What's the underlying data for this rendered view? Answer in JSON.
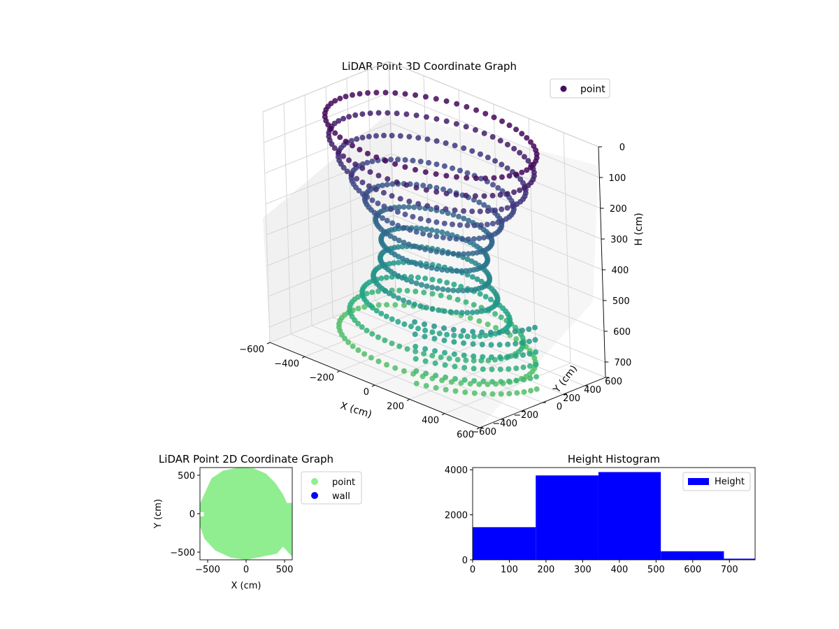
{
  "chart_data": [
    {
      "type": "scatter",
      "projection": "3d",
      "title": "LiDAR Point 3D Coordinate Graph",
      "xlabel": "X (cm)",
      "ylabel": "Y (cm)",
      "zlabel": "H (cm)",
      "xlim": [
        -600,
        600
      ],
      "ylim": [
        -600,
        600
      ],
      "zlim": [
        0,
        750
      ],
      "z_inverted": true,
      "xticks": [
        "−600",
        "−400",
        "−200",
        "0",
        "200",
        "400",
        "600"
      ],
      "yticks": [
        "−600",
        "−400",
        "−200",
        "0",
        "200",
        "400",
        "600"
      ],
      "zticks": [
        "0",
        "100",
        "200",
        "300",
        "400",
        "500",
        "600",
        "700"
      ],
      "colormap": "viridis",
      "legend": {
        "placement": "top-right",
        "entries": [
          {
            "label": "point",
            "color": "#440f62"
          }
        ]
      },
      "series": [
        {
          "name": "point",
          "shape": "ring of stacked scan lines",
          "ring_radius": 520,
          "top_height": 20,
          "bottom_height": 700
        }
      ]
    },
    {
      "type": "scatter",
      "title": "LiDAR Point 2D Coordinate Graph",
      "xlabel": "X (cm)",
      "ylabel": "Y (cm)",
      "xlim": [
        -600,
        600
      ],
      "ylim": [
        -600,
        600
      ],
      "xticks": [
        "−500",
        "0",
        "500"
      ],
      "yticks": [
        "−500",
        "0",
        "500"
      ],
      "legend": {
        "placement": "outside-right",
        "entries": [
          {
            "label": "point",
            "color": "#90ee90"
          },
          {
            "label": "wall",
            "color": "#0000ff"
          }
        ]
      },
      "series": [
        {
          "name": "point",
          "color": "#90ee90",
          "outline": [
            [
              -600,
              130
            ],
            [
              -450,
              460
            ],
            [
              -300,
              560
            ],
            [
              -100,
              600
            ],
            [
              100,
              590
            ],
            [
              260,
              520
            ],
            [
              380,
              400
            ],
            [
              480,
              250
            ],
            [
              530,
              140
            ],
            [
              600,
              140
            ],
            [
              600,
              -560
            ],
            [
              480,
              -430
            ],
            [
              400,
              -520
            ],
            [
              200,
              -560
            ],
            [
              0,
              -600
            ],
            [
              -200,
              -570
            ],
            [
              -400,
              -480
            ],
            [
              -540,
              -330
            ],
            [
              -600,
              -160
            ],
            [
              -600,
              -100
            ]
          ]
        },
        {
          "name": "wall",
          "color": "#0000ff"
        }
      ]
    },
    {
      "type": "bar",
      "histogram": true,
      "title": "Height Histogram",
      "xlim": [
        0,
        770
      ],
      "ylim": [
        0,
        4100
      ],
      "xticks": [
        "0",
        "100",
        "200",
        "300",
        "400",
        "500",
        "600",
        "700"
      ],
      "yticks": [
        "0",
        "2000",
        "4000"
      ],
      "color": "#0000ff",
      "legend": {
        "placement": "top-right",
        "entries": [
          {
            "label": "Height",
            "color": "#0000ff"
          }
        ]
      },
      "bin_edges": [
        0,
        172,
        343,
        513,
        685,
        770
      ],
      "values": [
        1450,
        3750,
        3900,
        380,
        50
      ]
    }
  ]
}
